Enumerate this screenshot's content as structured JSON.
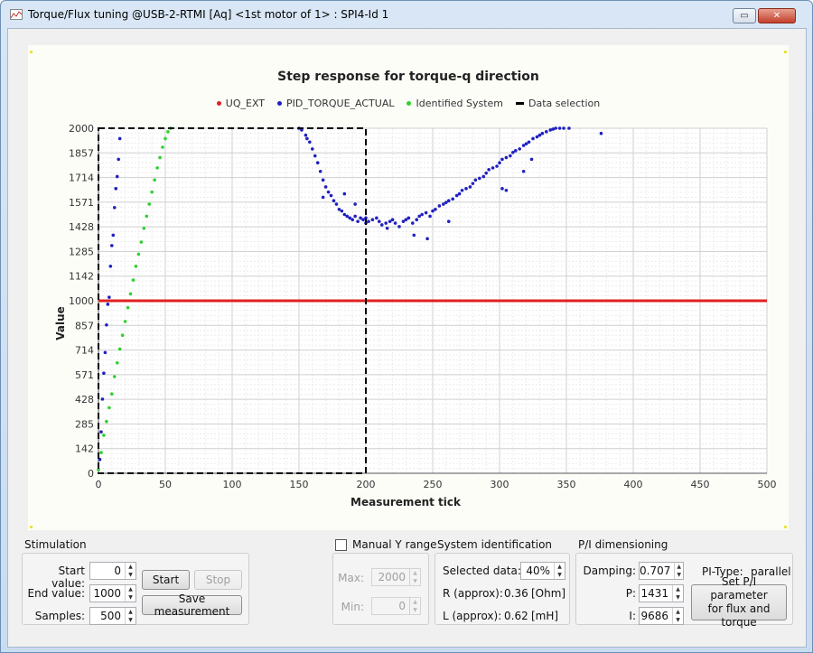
{
  "window": {
    "title": "Torque/Flux tuning @USB-2-RTMI [Aq] <1st motor of 1> : SPI4-Id 1",
    "close_glyph": "✕",
    "restore_glyph": "▭"
  },
  "chart": {
    "title": "Step response for torque-q direction",
    "legend": [
      {
        "label": "UQ_EXT",
        "color": "#e02020",
        "style": "dot"
      },
      {
        "label": "PID_TORQUE_ACTUAL",
        "color": "#2020c0",
        "style": "dot"
      },
      {
        "label": "Identified System",
        "color": "#30d030",
        "style": "dot"
      },
      {
        "label": "Data selection",
        "color": "#000000",
        "style": "dash"
      }
    ]
  },
  "chart_data": {
    "type": "scatter",
    "title": "Step response for torque-q direction",
    "xlabel": "Measurement tick",
    "ylabel": "Value",
    "xlim": [
      0,
      500
    ],
    "ylim": [
      0,
      2000
    ],
    "x_ticks": [
      "0",
      "50",
      "100",
      "150",
      "200",
      "250",
      "300",
      "350",
      "400",
      "450",
      "500"
    ],
    "y_ticks": [
      "0",
      "142",
      "285",
      "428",
      "571",
      "714",
      "857",
      "1000",
      "1142",
      "1285",
      "1428",
      "1571",
      "1714",
      "1857",
      "2000"
    ],
    "grid": true,
    "legend_position": "top",
    "series": [
      {
        "name": "UQ_EXT",
        "color": "#e02020",
        "kind": "line",
        "x": [
          0,
          500
        ],
        "y": [
          1000,
          1000
        ]
      },
      {
        "name": "PID_TORQUE_ACTUAL",
        "color": "#2020c0",
        "kind": "scatter",
        "x": [
          1,
          2,
          3,
          4,
          5,
          6,
          7,
          8,
          9,
          10,
          11,
          12,
          13,
          14,
          15,
          16,
          150,
          152,
          155,
          158,
          160,
          162,
          164,
          166,
          168,
          170,
          172,
          174,
          176,
          178,
          180,
          182,
          184,
          186,
          188,
          190,
          192,
          194,
          196,
          198,
          200,
          202,
          205,
          208,
          210,
          212,
          215,
          218,
          220,
          222,
          225,
          228,
          230,
          232,
          235,
          238,
          240,
          242,
          245,
          248,
          250,
          252,
          255,
          258,
          260,
          262,
          265,
          268,
          270,
          272,
          275,
          278,
          280,
          282,
          285,
          288,
          290,
          292,
          295,
          298,
          300,
          302,
          305,
          308,
          310,
          312,
          315,
          318,
          320,
          322,
          325,
          328,
          330,
          332,
          335,
          338,
          340,
          342,
          345,
          348,
          352,
          376,
          156,
          168,
          184,
          192,
          200,
          216,
          236,
          246,
          262,
          302,
          305,
          318,
          324
        ],
        "y": [
          80,
          240,
          430,
          580,
          700,
          860,
          980,
          1020,
          1200,
          1320,
          1380,
          1540,
          1650,
          1720,
          1820,
          1940,
          2000,
          1990,
          1960,
          1920,
          1880,
          1840,
          1800,
          1750,
          1700,
          1660,
          1630,
          1610,
          1580,
          1560,
          1530,
          1520,
          1500,
          1490,
          1480,
          1470,
          1490,
          1460,
          1480,
          1470,
          1450,
          1460,
          1470,
          1480,
          1460,
          1440,
          1450,
          1460,
          1470,
          1450,
          1430,
          1460,
          1470,
          1480,
          1450,
          1470,
          1490,
          1500,
          1510,
          1490,
          1520,
          1530,
          1550,
          1560,
          1570,
          1580,
          1590,
          1610,
          1620,
          1640,
          1650,
          1660,
          1680,
          1700,
          1710,
          1720,
          1740,
          1760,
          1770,
          1780,
          1800,
          1820,
          1830,
          1840,
          1860,
          1870,
          1880,
          1900,
          1910,
          1920,
          1940,
          1950,
          1960,
          1970,
          1980,
          1990,
          1995,
          2000,
          2000,
          2000,
          2000,
          1970,
          1940,
          1600,
          1620,
          1560,
          1480,
          1420,
          1380,
          1360,
          1460,
          1650,
          1640,
          1750,
          1820
        ]
      },
      {
        "name": "Identified System",
        "color": "#30d030",
        "kind": "scatter",
        "x": [
          0,
          2,
          4,
          6,
          8,
          10,
          12,
          14,
          16,
          18,
          20,
          22,
          24,
          26,
          28,
          30,
          32,
          34,
          36,
          38,
          40,
          42,
          44,
          46,
          48,
          50,
          52,
          54
        ],
        "y": [
          20,
          120,
          220,
          300,
          380,
          460,
          560,
          640,
          720,
          800,
          880,
          960,
          1040,
          1120,
          1200,
          1270,
          1340,
          1420,
          1490,
          1560,
          1630,
          1700,
          1770,
          1830,
          1890,
          1940,
          1980,
          2000
        ]
      },
      {
        "name": "Data selection",
        "color": "#000000",
        "kind": "rect",
        "x_range": [
          0,
          200
        ],
        "y_range": [
          0,
          2000
        ]
      }
    ]
  },
  "stimulation": {
    "title": "Stimulation",
    "start_value_label": "Start value:",
    "start_value": "0",
    "end_value_label": "End value:",
    "end_value": "1000",
    "samples_label": "Samples:",
    "samples": "500",
    "start_button": "Start",
    "stop_button": "Stop",
    "save_button": "Save measurement"
  },
  "manual_y": {
    "checkbox_label": "Manual Y  range",
    "max_label": "Max:",
    "max_value": "2000",
    "min_label": "Min:",
    "min_value": "0"
  },
  "system_identification": {
    "title": "System identification",
    "selected_data_label": "Selected data:",
    "selected_data": "40%",
    "r_label": "R (approx):",
    "r_value": "0.36",
    "r_unit": "[Ohm]",
    "l_label": "L (approx):",
    "l_value": "0.62",
    "l_unit": "[mH]"
  },
  "pi_dimensioning": {
    "title": "P/I dimensioning",
    "damping_label": "Damping:",
    "damping_value": "0.707",
    "p_label": "P:",
    "p_value": "1431",
    "i_label": "I:",
    "i_value": "9686",
    "pi_type_label": "PI-Type:",
    "pi_type_value": "parallel",
    "set_button_line1": "Set P/I parameter",
    "set_button_line2": "for flux and torque"
  },
  "spin_arrows": {
    "up": "▲",
    "down": "▼"
  }
}
